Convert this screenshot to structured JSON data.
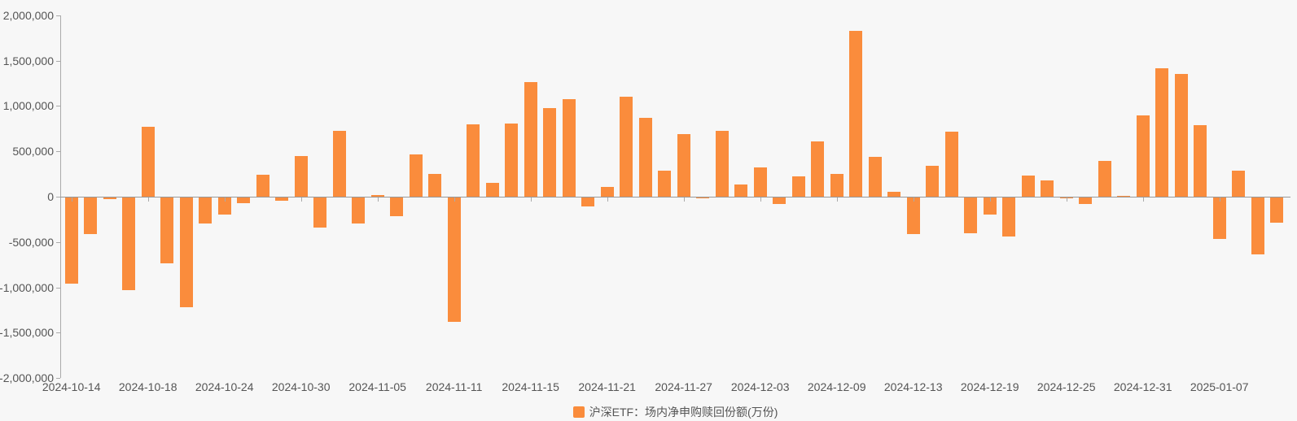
{
  "chart_data": {
    "type": "bar",
    "title": "",
    "series": [
      {
        "name": "沪深ETF：场内净申购赎回份额(万份)",
        "values": [
          -950000,
          -400000,
          -20000,
          -1020000,
          770000,
          -730000,
          -1210000,
          -290000,
          -190000,
          -65000,
          240000,
          -35000,
          450000,
          -330000,
          730000,
          -290000,
          15000,
          -210000,
          470000,
          250000,
          -1370000,
          800000,
          150000,
          810000,
          1260000,
          980000,
          1080000,
          -100000,
          105000,
          1100000,
          870000,
          290000,
          690000,
          -10000,
          730000,
          130000,
          320000,
          -70000,
          220000,
          610000,
          255000,
          1830000,
          440000,
          50000,
          -400000,
          340000,
          720000,
          -390000,
          -190000,
          -430000,
          230000,
          180000,
          -10000,
          -70000,
          390000,
          10000,
          900000,
          1420000,
          1350000,
          790000,
          -460000,
          290000,
          -630000,
          -280000
        ]
      }
    ],
    "x": [
      "2024-10-14",
      "2024-10-15",
      "2024-10-16",
      "2024-10-17",
      "2024-10-18",
      "2024-10-21",
      "2024-10-22",
      "2024-10-23",
      "2024-10-24",
      "2024-10-25",
      "2024-10-28",
      "2024-10-29",
      "2024-10-30",
      "2024-10-31",
      "2024-11-01",
      "2024-11-04",
      "2024-11-05",
      "2024-11-06",
      "2024-11-07",
      "2024-11-08",
      "2024-11-11",
      "2024-11-12",
      "2024-11-13",
      "2024-11-14",
      "2024-11-15",
      "2024-11-18",
      "2024-11-19",
      "2024-11-20",
      "2024-11-21",
      "2024-11-22",
      "2024-11-25",
      "2024-11-26",
      "2024-11-27",
      "2024-11-28",
      "2024-11-29",
      "2024-12-02",
      "2024-12-03",
      "2024-12-04",
      "2024-12-05",
      "2024-12-06",
      "2024-12-09",
      "2024-12-10",
      "2024-12-11",
      "2024-12-12",
      "2024-12-13",
      "2024-12-16",
      "2024-12-17",
      "2024-12-18",
      "2024-12-19",
      "2024-12-20",
      "2024-12-23",
      "2024-12-24",
      "2024-12-25",
      "2024-12-26",
      "2024-12-27",
      "2024-12-30",
      "2024-12-31",
      "2025-01-02",
      "2025-01-03",
      "2025-01-06",
      "2025-01-07",
      "2025-01-08",
      "2025-01-09",
      "2025-01-10"
    ],
    "x_label_interval": 4,
    "visible_x_labels": [
      "2024-10-14",
      "2024-10-18",
      "2024-10-24",
      "2024-10-30",
      "2024-11-05",
      "2024-11-11",
      "2024-11-15",
      "2024-11-21",
      "2024-11-27",
      "2024-12-03",
      "2024-12-09",
      "2024-12-13",
      "2024-12-19",
      "2024-12-25",
      "2024-12-31",
      "2025-01-07"
    ],
    "xlabel": "",
    "ylabel": "",
    "ylim": [
      -2000000,
      2000000
    ],
    "y_tick_step": 500000,
    "y_tick_labels": [
      "2,000,000",
      "1,500,000",
      "1,000,000",
      "500,000",
      "0",
      "-500,000",
      "-1,000,000",
      "-1,500,000",
      "-2,000,000"
    ],
    "grid": false,
    "legend_position": "bottom-center"
  },
  "legend": {
    "label": "沪深ETF：场内净申购赎回份额(万份)"
  },
  "colors": {
    "bar": "#fa8c3c",
    "background": "#f7f7f7",
    "axis_line": "#aaaaaa",
    "zero_line": "#999999",
    "tick": "#aaaaaa",
    "label_text": "#555555",
    "legend_text": "#555555"
  }
}
